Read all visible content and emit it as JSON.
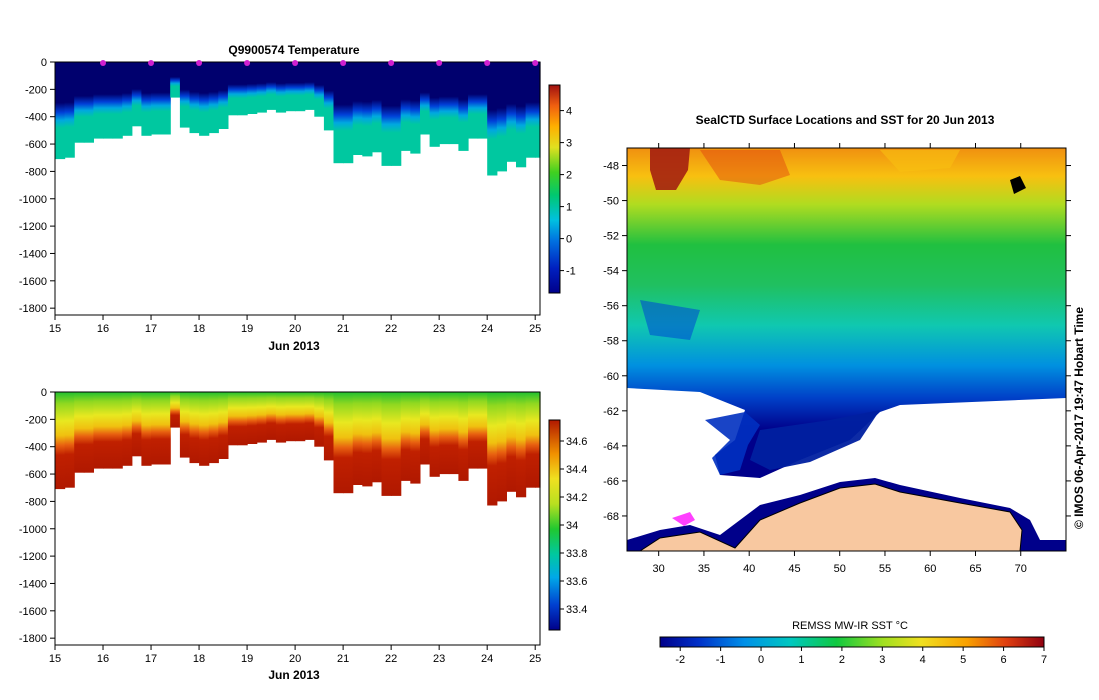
{
  "temperature_panel": {
    "title": "Q9900574  Temperature",
    "xlabel": "Jun 2013"
  },
  "salinity_panel": {
    "xlabel": "Jun 2013"
  },
  "map_panel": {
    "title": "SealCTD Surface Locations and SST for 20 Jun 2013",
    "colorbar_label": "REMSS MW-IR SST °C",
    "credit": "©  IMOS 06-Apr-2017 19:47 Hobart Time"
  },
  "chart_data": [
    {
      "type": "heatmap",
      "title": "Q9900574  Temperature",
      "xlabel": "Jun 2013",
      "ylabel": "",
      "xlim": [
        15,
        25.1
      ],
      "ylim": [
        -1850,
        0
      ],
      "xticks": [
        "15",
        "16",
        "17",
        "18",
        "19",
        "20",
        "21",
        "22",
        "23",
        "24",
        "25"
      ],
      "yticks": [
        "0",
        "-200",
        "-400",
        "-600",
        "-800",
        "-1000",
        "-1200",
        "-1400",
        "-1600",
        "-1800"
      ],
      "colorbar": {
        "min": -1.7,
        "max": 4.8,
        "ticks": [
          "-1",
          "0",
          "1",
          "2",
          "3",
          "4"
        ]
      },
      "profile_times": [
        15.0,
        15.2,
        15.4,
        15.6,
        15.8,
        16.0,
        16.2,
        16.4,
        16.6,
        16.8,
        17.0,
        17.2,
        17.4,
        17.6,
        17.8,
        18.0,
        18.2,
        18.4,
        18.6,
        18.8,
        19.0,
        19.2,
        19.4,
        19.6,
        19.8,
        20.0,
        20.2,
        20.4,
        20.6,
        20.8,
        21.0,
        21.2,
        21.4,
        21.6,
        21.8,
        22.0,
        22.2,
        22.4,
        22.6,
        22.8,
        23.0,
        23.2,
        23.4,
        23.6,
        23.8,
        24.0,
        24.2,
        24.4,
        24.6,
        24.8,
        25.0
      ],
      "max_depth_m": [
        710,
        700,
        590,
        590,
        560,
        560,
        560,
        540,
        470,
        540,
        530,
        530,
        260,
        480,
        520,
        540,
        520,
        490,
        390,
        390,
        380,
        370,
        350,
        370,
        360,
        360,
        350,
        400,
        500,
        740,
        740,
        680,
        690,
        660,
        760,
        760,
        650,
        670,
        530,
        620,
        600,
        600,
        650,
        560,
        560,
        830,
        800,
        730,
        770,
        700,
        700
      ],
      "surface_marker_times": [
        16,
        17,
        18,
        19,
        20,
        21,
        22,
        23,
        24,
        25
      ]
    },
    {
      "type": "heatmap",
      "title": "",
      "xlabel": "Jun 2013",
      "ylabel": "",
      "xlim": [
        15,
        25.1
      ],
      "ylim": [
        -1850,
        0
      ],
      "xticks": [
        "15",
        "16",
        "17",
        "18",
        "19",
        "20",
        "21",
        "22",
        "23",
        "24",
        "25"
      ],
      "yticks": [
        "0",
        "-200",
        "-400",
        "-600",
        "-800",
        "-1000",
        "-1200",
        "-1400",
        "-1600",
        "-1800"
      ],
      "colorbar": {
        "min": 33.25,
        "max": 34.75,
        "ticks": [
          "33.4",
          "33.6",
          "33.8",
          "34",
          "34.2",
          "34.4",
          "34.6"
        ]
      }
    },
    {
      "type": "heatmap",
      "title": "SealCTD Surface Locations and SST for 20 Jun 2013",
      "xlim": [
        26.5,
        75
      ],
      "ylim": [
        -70,
        -47
      ],
      "xticks": [
        "30",
        "35",
        "40",
        "45",
        "50",
        "55",
        "60",
        "65",
        "70"
      ],
      "yticks": [
        "-48",
        "-50",
        "-52",
        "-54",
        "-56",
        "-58",
        "-60",
        "-62",
        "-64",
        "-66",
        "-68"
      ],
      "colorbar": {
        "label": "REMSS MW-IR SST °C",
        "min": -2.5,
        "max": 7,
        "ticks": [
          "-2",
          "-1",
          "0",
          "1",
          "2",
          "3",
          "4",
          "5",
          "6",
          "7"
        ]
      }
    }
  ]
}
